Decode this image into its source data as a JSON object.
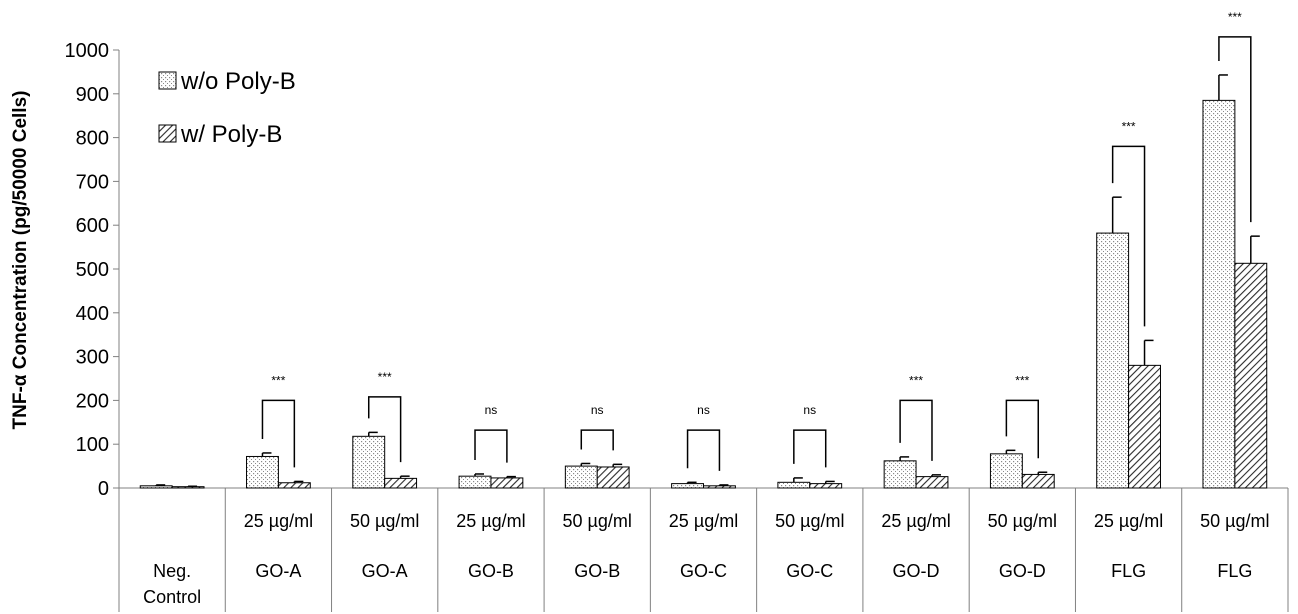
{
  "chart_data": {
    "type": "bar",
    "ylabel": "TNF-α Concentration (pg/50000 Cells)",
    "ylim": [
      0,
      1000
    ],
    "yticks": [
      0,
      100,
      200,
      300,
      400,
      500,
      600,
      700,
      800,
      900,
      1000
    ],
    "grid": false,
    "legend_position": "top-left",
    "categories": [
      {
        "dose": "",
        "material": "Neg.",
        "material_line2": "Control"
      },
      {
        "dose": "25 µg/ml",
        "material": "GO-A",
        "material_line2": ""
      },
      {
        "dose": "50 µg/ml",
        "material": "GO-A",
        "material_line2": ""
      },
      {
        "dose": "25 µg/ml",
        "material": "GO-B",
        "material_line2": ""
      },
      {
        "dose": "50 µg/ml",
        "material": "GO-B",
        "material_line2": ""
      },
      {
        "dose": "25 µg/ml",
        "material": "GO-C",
        "material_line2": ""
      },
      {
        "dose": "50 µg/ml",
        "material": "GO-C",
        "material_line2": ""
      },
      {
        "dose": "25 µg/ml",
        "material": "GO-D",
        "material_line2": ""
      },
      {
        "dose": "50 µg/ml",
        "material": "GO-D",
        "material_line2": ""
      },
      {
        "dose": "25 µg/ml",
        "material": "FLG",
        "material_line2": ""
      },
      {
        "dose": "50 µg/ml",
        "material": "FLG",
        "material_line2": ""
      }
    ],
    "series": [
      {
        "name": "w/o Poly-B",
        "pattern": "dots",
        "values": [
          5,
          72,
          118,
          27,
          50,
          10,
          13,
          62,
          78,
          582,
          885
        ],
        "errors": [
          2,
          8,
          9,
          5,
          6,
          3,
          10,
          9,
          8,
          82,
          58
        ]
      },
      {
        "name": "w/ Poly-B",
        "pattern": "hatch",
        "values": [
          3,
          12,
          22,
          23,
          48,
          5,
          10,
          26,
          31,
          280,
          513
        ],
        "errors": [
          1,
          3,
          5,
          3,
          6,
          2,
          5,
          4,
          5,
          57,
          62
        ]
      }
    ],
    "significance": [
      {
        "category": 1,
        "label": "***",
        "y": 200
      },
      {
        "category": 2,
        "label": "***",
        "y": 208
      },
      {
        "category": 3,
        "label": "ns",
        "y": 132
      },
      {
        "category": 4,
        "label": "ns",
        "y": 132
      },
      {
        "category": 5,
        "label": "ns",
        "y": 132
      },
      {
        "category": 6,
        "label": "ns",
        "y": 132
      },
      {
        "category": 7,
        "label": "***",
        "y": 200
      },
      {
        "category": 8,
        "label": "***",
        "y": 200
      },
      {
        "category": 9,
        "label": "***",
        "y": 780
      },
      {
        "category": 10,
        "label": "***",
        "y": 1030
      }
    ]
  }
}
